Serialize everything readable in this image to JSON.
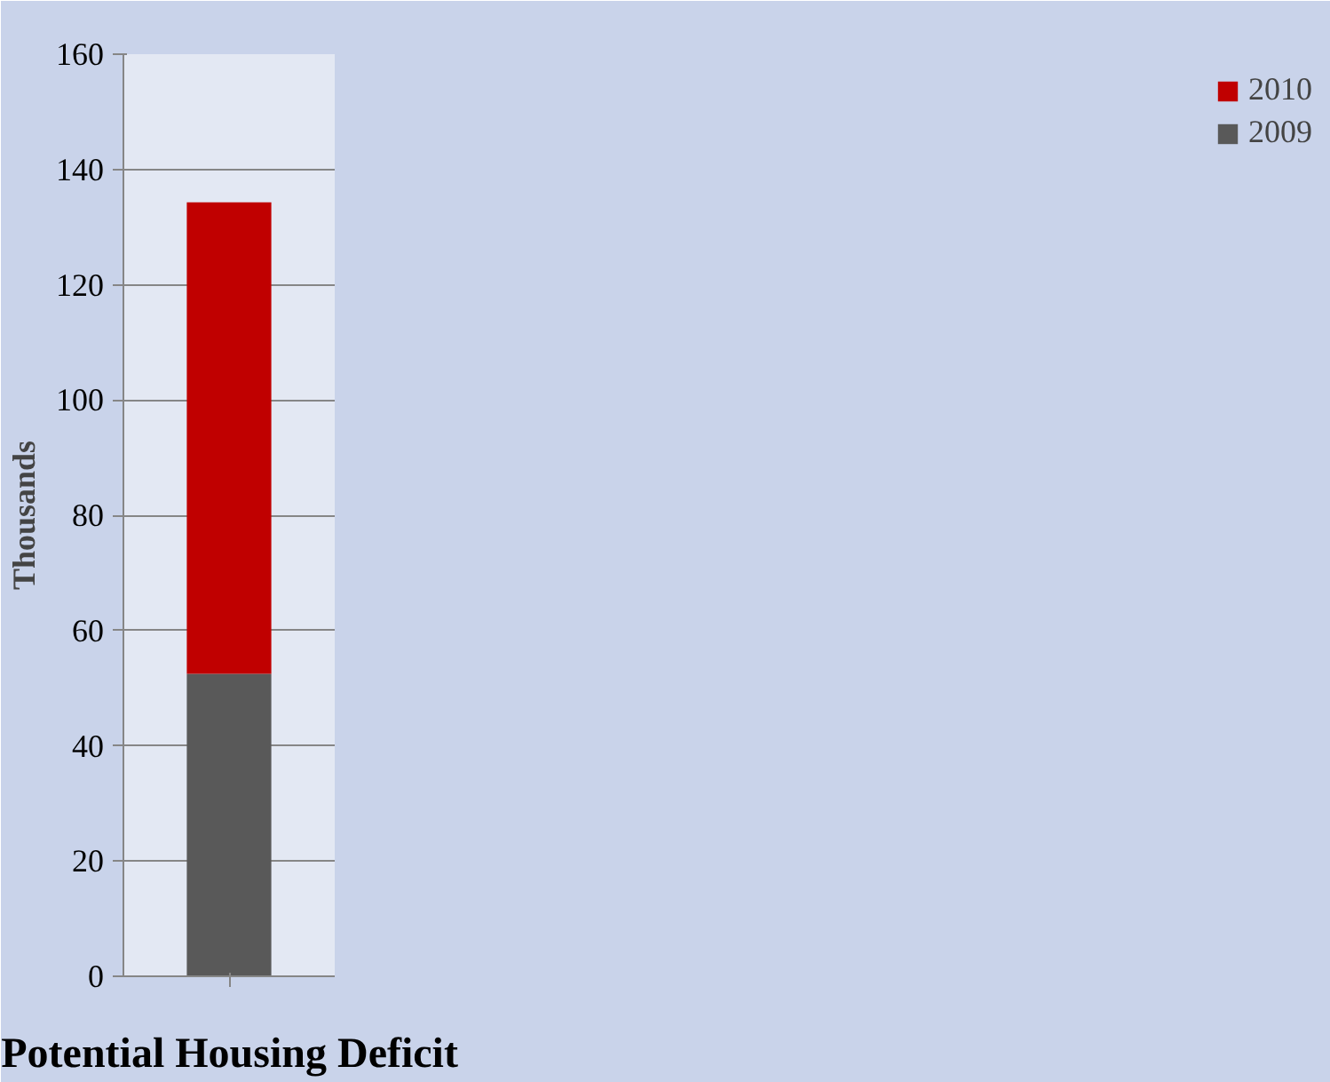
{
  "chart_data": {
    "type": "bar",
    "stacked": true,
    "ylabel": "Thousands",
    "categories": [
      "Potential Housing Deficit"
    ],
    "series": [
      {
        "name": "2009",
        "color": "#595959",
        "values": [
          52.5
        ]
      },
      {
        "name": "2010",
        "color": "#c00000",
        "values": [
          81.8
        ]
      }
    ],
    "ylim": [
      0,
      160
    ],
    "yticks": [
      0,
      20,
      40,
      60,
      80,
      100,
      120,
      140,
      160
    ],
    "grid": "y",
    "legend": "right"
  }
}
